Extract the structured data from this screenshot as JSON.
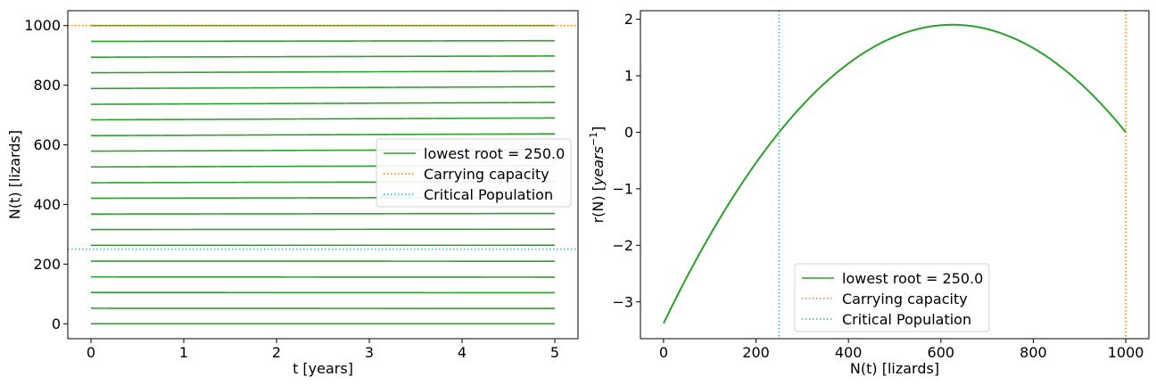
{
  "colors": {
    "series": "#2ca02c",
    "carrying_capacity": "#ff7f0e",
    "critical_population": "#17becf"
  },
  "chart_data": [
    {
      "type": "line",
      "xlabel": "t [years]",
      "ylabel": "N(t) [lizards]",
      "xlim": [
        -0.25,
        5.25
      ],
      "ylim": [
        -50,
        1050
      ],
      "xticks": [
        0,
        1,
        2,
        3,
        4,
        5
      ],
      "yticks": [
        0,
        200,
        400,
        600,
        800,
        1000
      ],
      "grid": false,
      "legend_position": "center-right",
      "legend": [
        {
          "label": "lowest root = 250.0",
          "style": "solid",
          "color_key": "series"
        },
        {
          "label": "Carrying capacity",
          "style": "dotted",
          "color_key": "carrying_capacity"
        },
        {
          "label": "Critical Population",
          "style": "dotted",
          "color_key": "critical_population"
        }
      ],
      "carrying_capacity": 1000,
      "critical_population": 250,
      "t_range": [
        0,
        5
      ],
      "initial_values": [
        0,
        52,
        105,
        157,
        210,
        263,
        316,
        368,
        421,
        473,
        526,
        579,
        631,
        684,
        736,
        789,
        842,
        894,
        947,
        1000
      ]
    },
    {
      "type": "line",
      "xlabel": "N(t) [lizards]",
      "ylabel": "r(N) [years⁻¹]",
      "ylabel_parts": {
        "prefix": "r(N) [",
        "italic": "years",
        "sup": "−1",
        "suffix": "]"
      },
      "xlim": [
        -50,
        1050
      ],
      "ylim": [
        -3.65,
        2.15
      ],
      "xticks": [
        0,
        200,
        400,
        600,
        800,
        1000
      ],
      "yticks": [
        -3,
        -2,
        -1,
        0,
        1,
        2
      ],
      "ytick_labels": [
        "−3",
        "−2",
        "−1",
        "0",
        "1",
        "2"
      ],
      "grid": false,
      "legend_position": "lower-center",
      "legend": [
        {
          "label": "lowest root = 250.0",
          "style": "solid",
          "color_key": "series"
        },
        {
          "label": "Carrying capacity",
          "style": "dotted",
          "color_key": "carrying_capacity"
        },
        {
          "label": "Critical Population",
          "style": "dotted",
          "color_key": "critical_population"
        }
      ],
      "carrying_capacity": 1000,
      "critical_population": 250,
      "curve": {
        "x": [
          0,
          50,
          100,
          150,
          200,
          250,
          300,
          350,
          400,
          450,
          500,
          550,
          600,
          650,
          700,
          750,
          800,
          850,
          900,
          950,
          1000
        ],
        "y": [
          -3.38,
          -2.7,
          -2.06,
          -1.47,
          -0.91,
          0.0,
          0.38,
          0.78,
          1.14,
          1.42,
          1.63,
          1.79,
          1.88,
          1.89,
          1.82,
          1.68,
          1.46,
          1.16,
          0.8,
          0.42,
          0.0
        ]
      }
    }
  ]
}
